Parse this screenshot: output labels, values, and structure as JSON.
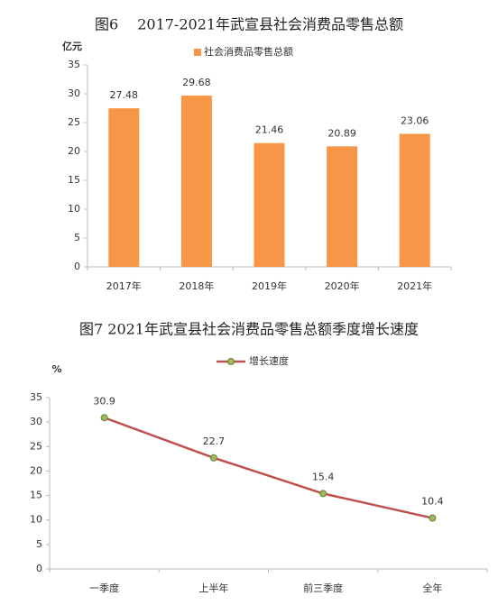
{
  "chart_data": [
    {
      "type": "bar",
      "title": "图6　 2017-2021年武宣县社会消费品零售总额",
      "ylabel": "亿元",
      "categories": [
        "2017年",
        "2018年",
        "2019年",
        "2020年",
        "2021年"
      ],
      "series": [
        {
          "name": "社会消费品零售总额",
          "color": "#f79646",
          "values": [
            27.48,
            29.68,
            21.46,
            20.89,
            23.06
          ]
        }
      ],
      "ylim": [
        0,
        35
      ],
      "yticks": [
        0,
        5,
        10,
        15,
        20,
        25,
        30,
        35
      ]
    },
    {
      "type": "line",
      "title": "图7 2021年武宣县社会消费品零售总额季度增长速度",
      "ylabel": "%",
      "categories": [
        "一季度",
        "上半年",
        "前三季度",
        "全年"
      ],
      "series": [
        {
          "name": "增长速度",
          "color": "#c0504d",
          "marker_color": "#9bbb59",
          "values": [
            30.9,
            22.7,
            15.4,
            10.4
          ]
        }
      ],
      "ylim": [
        0,
        35
      ],
      "yticks": [
        0,
        5,
        10,
        15,
        20,
        25,
        30,
        35
      ]
    }
  ]
}
